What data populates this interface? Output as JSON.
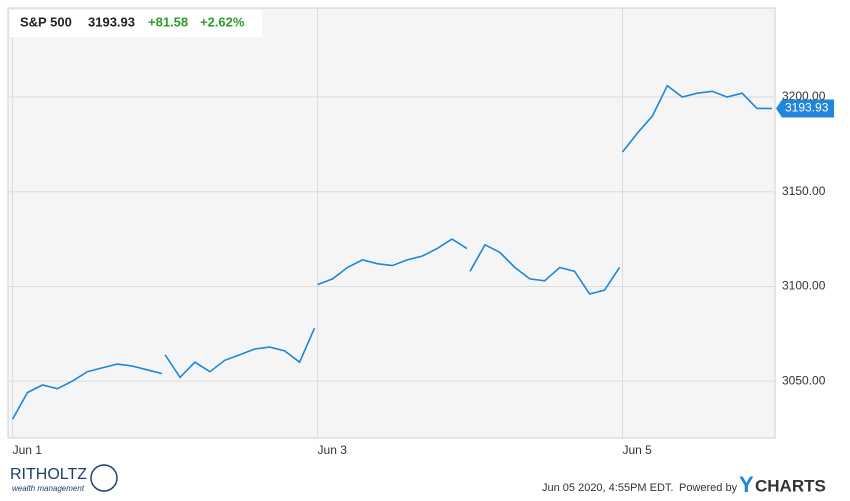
{
  "chart_data": {
    "type": "line",
    "header": {
      "name": "S&P 500",
      "price": "3193.93",
      "change": "+81.58",
      "change_pct": "+2.62%"
    },
    "x": [
      0,
      0.098,
      0.196,
      0.294,
      0.392,
      0.49,
      0.588,
      0.686,
      0.784,
      0.882,
      0.98,
      0.99,
      1,
      1.098,
      1.196,
      1.294,
      1.392,
      1.49,
      1.588,
      1.686,
      1.784,
      1.882,
      1.98,
      1.99,
      2,
      2.098,
      2.196,
      2.294,
      2.392,
      2.49,
      2.588,
      2.686,
      2.784,
      2.882,
      2.98,
      2.99,
      3,
      3.098,
      3.196,
      3.294,
      3.392,
      3.49,
      3.588,
      3.686,
      3.784,
      3.882,
      3.98,
      3.99,
      4,
      4.098,
      4.196,
      4.294,
      4.392,
      4.49,
      4.588,
      4.686,
      4.784,
      4.882,
      4.98
    ],
    "series": [
      {
        "name": "S&P 500",
        "color": "#1f86d9",
        "values": [
          3030,
          3044,
          3048,
          3046,
          3050,
          3055,
          3057,
          3059,
          3058,
          3056,
          3054,
          null,
          3064,
          3052,
          3060,
          3055,
          3061,
          3064,
          3067,
          3068,
          3066,
          3060,
          3078,
          null,
          3101,
          3104,
          3110,
          3114,
          3112,
          3111,
          3114,
          3116,
          3120,
          3125,
          3120,
          null,
          3108,
          3122,
          3118,
          3110,
          3104,
          3103,
          3110,
          3108,
          3096,
          3098,
          3110,
          null,
          3171,
          3181,
          3190,
          3206,
          3200,
          3202,
          3203,
          3200,
          3202,
          3194,
          3193.93
        ]
      }
    ],
    "xlim": [
      -0.03,
      5.0
    ],
    "xticks": [
      {
        "value": 0,
        "label": "Jun 1"
      },
      {
        "value": 2,
        "label": "Jun 3"
      },
      {
        "value": 4,
        "label": "Jun 5"
      }
    ],
    "ylim": [
      3020,
      3247
    ],
    "yticks": [
      {
        "value": 3050,
        "label": "3050.00"
      },
      {
        "value": 3100,
        "label": "3100.00"
      },
      {
        "value": 3150,
        "label": "3150.00"
      },
      {
        "value": 3200,
        "label": "3200.00"
      }
    ],
    "grid": true
  },
  "footer": {
    "brand": "RITHOLTZ",
    "brand_sub": "wealth management",
    "timestamp": "Jun 05 2020, 4:55PM EDT.",
    "powered": "Powered by",
    "logo_y": "Y",
    "logo_rest": "CHARTS"
  }
}
